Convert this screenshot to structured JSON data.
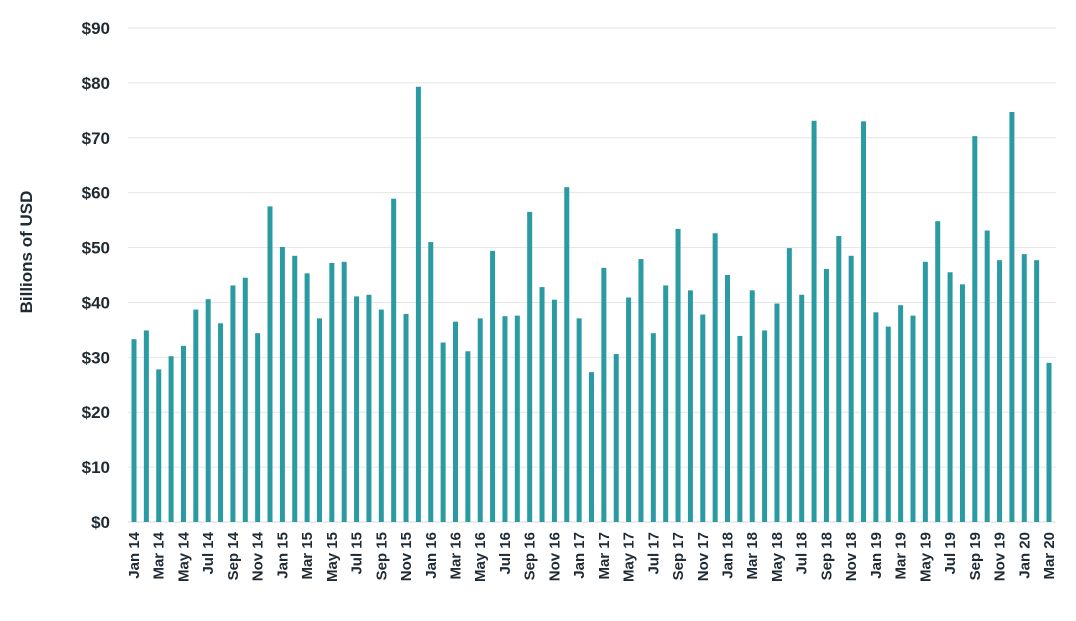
{
  "chart_data": {
    "type": "bar",
    "title": "",
    "xlabel": "",
    "ylabel": "Billions of USD",
    "ylim": [
      0,
      90
    ],
    "yticks": [
      0,
      10,
      20,
      30,
      40,
      50,
      60,
      70,
      80,
      90
    ],
    "ytick_labels": [
      "$0",
      "$10",
      "$20",
      "$30",
      "$40",
      "$50",
      "$60",
      "$70",
      "$80",
      "$90"
    ],
    "grid": true,
    "bar_color": "#2a9aa3",
    "categories": [
      "Jan 14",
      "Feb 14",
      "Mar 14",
      "Apr 14",
      "May 14",
      "Jun 14",
      "Jul 14",
      "Aug 14",
      "Sep 14",
      "Oct 14",
      "Nov 14",
      "Dec 14",
      "Jan 15",
      "Feb 15",
      "Mar 15",
      "Apr 15",
      "May 15",
      "Jun 15",
      "Jul 15",
      "Aug 15",
      "Sep 15",
      "Oct 15",
      "Nov 15",
      "Dec 15",
      "Jan 16",
      "Feb 16",
      "Mar 16",
      "Apr 16",
      "May 16",
      "Jun 16",
      "Jul 16",
      "Aug 16",
      "Sep 16",
      "Oct 16",
      "Nov 16",
      "Dec 16",
      "Jan 17",
      "Feb 17",
      "Mar 17",
      "Apr 17",
      "May 17",
      "Jun 17",
      "Jul 17",
      "Aug 17",
      "Sep 17",
      "Oct 17",
      "Nov 17",
      "Dec 17",
      "Jan 18",
      "Feb 18",
      "Mar 18",
      "Apr 18",
      "May 18",
      "Jun 18",
      "Jul 18",
      "Aug 18",
      "Sep 18",
      "Oct 18",
      "Nov 18",
      "Dec 18",
      "Jan 19",
      "Feb 19",
      "Mar 19",
      "Apr 19",
      "May 19",
      "Jun 19",
      "Jul 19",
      "Aug 19",
      "Sep 19",
      "Oct 19",
      "Nov 19",
      "Dec 19",
      "Jan 20",
      "Feb 20",
      "Mar 20"
    ],
    "tick_labels": [
      "Jan 14",
      "Mar 14",
      "May 14",
      "Jul 14",
      "Sep 14",
      "Nov 14",
      "Jan 15",
      "Mar 15",
      "May 15",
      "Jul 15",
      "Sep 15",
      "Nov 15",
      "Jan 16",
      "Mar 16",
      "May 16",
      "Jul 16",
      "Sep 16",
      "Nov 16",
      "Jan 17",
      "Mar 17",
      "May 17",
      "Jul 17",
      "Sep 17",
      "Nov 17",
      "Jan 18",
      "Mar 18",
      "May 18",
      "Jul 18",
      "Sep 18",
      "Nov 18",
      "Jan 19",
      "Mar 19",
      "May 19",
      "Jul 19",
      "Sep 19",
      "Nov 19",
      "Jan 20",
      "Mar 20"
    ],
    "values": [
      33.3,
      34.9,
      27.8,
      30.2,
      32.1,
      38.7,
      40.6,
      36.2,
      43.1,
      44.5,
      34.4,
      57.5,
      50.1,
      48.5,
      45.3,
      37.1,
      47.2,
      47.4,
      41.1,
      41.4,
      38.7,
      58.9,
      37.9,
      79.3,
      51.0,
      32.7,
      36.5,
      31.1,
      37.1,
      49.4,
      37.5,
      37.6,
      56.5,
      42.8,
      40.5,
      61.0,
      37.1,
      27.3,
      46.3,
      30.6,
      40.9,
      47.9,
      34.4,
      43.1,
      53.4,
      42.2,
      37.8,
      52.6,
      45.0,
      33.9,
      42.2,
      34.9,
      39.8,
      49.9,
      41.4,
      73.1,
      46.1,
      52.1,
      48.5,
      73.0,
      38.2,
      35.6,
      39.5,
      37.6,
      47.4,
      54.8,
      45.5,
      43.3,
      70.3,
      53.1,
      47.7,
      74.7,
      48.8,
      47.7,
      29.0
    ]
  }
}
